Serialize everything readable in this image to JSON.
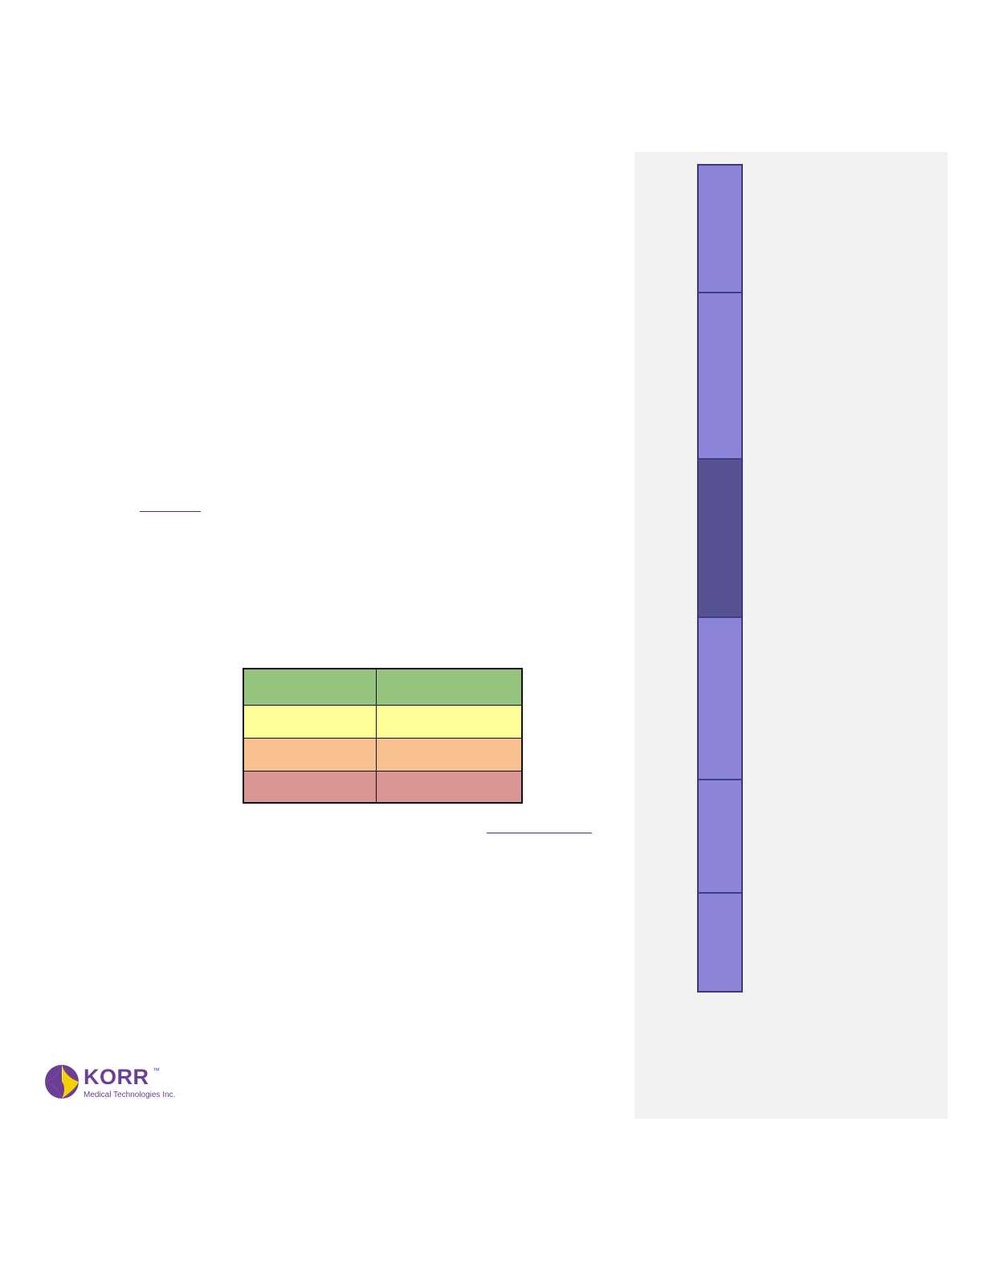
{
  "document": {
    "links": [
      {
        "text": ""
      },
      {
        "text": ""
      }
    ]
  },
  "zone_table": {
    "rows": [
      {
        "color": "#95c47f",
        "cells": [
          "",
          ""
        ]
      },
      {
        "color": "#ffff99",
        "cells": [
          "",
          ""
        ]
      },
      {
        "color": "#f9c090",
        "cells": [
          "",
          ""
        ]
      },
      {
        "color": "#d99594",
        "cells": [
          "",
          ""
        ]
      }
    ]
  },
  "sidebar": {
    "background": "#f2f2f2",
    "segments": [
      {
        "label": "",
        "active": false,
        "color": "#8b84d9"
      },
      {
        "label": "",
        "active": false,
        "color": "#8b84d9"
      },
      {
        "label": "",
        "active": true,
        "color": "#575291"
      },
      {
        "label": "",
        "active": false,
        "color": "#8b84d9"
      },
      {
        "label": "",
        "active": false,
        "color": "#8b84d9"
      },
      {
        "label": "",
        "active": false,
        "color": "#8b84d9"
      }
    ]
  },
  "logo": {
    "wordmark": "KORR",
    "trademark": "™",
    "tagline": "Medical Technologies Inc.",
    "colors": {
      "purple": "#6b3f96",
      "yellow": "#f5d100"
    }
  }
}
